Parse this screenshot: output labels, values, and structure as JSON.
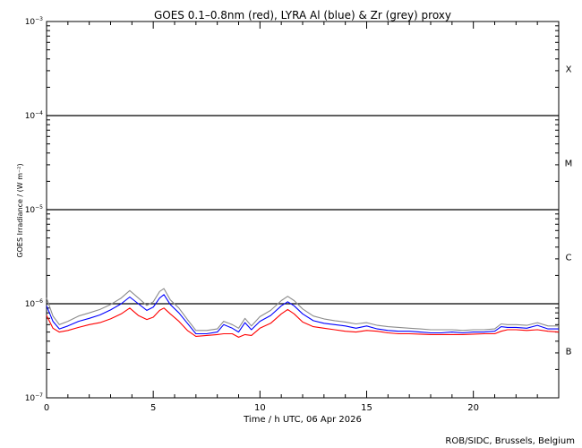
{
  "chart_data": {
    "type": "line",
    "title": "GOES 0.1–0.8nm (red), LYRA Al (blue) & Zr (grey) proxy",
    "xlabel": "Time / h UTC, 06 Apr 2026",
    "ylabel": "GOES Irradiance / (W m⁻²)",
    "footer": "ROB/SIDC, Brussels, Belgium",
    "y_scale": "log",
    "xlim": [
      0,
      24
    ],
    "ylim": [
      1e-07,
      0.001
    ],
    "x_ticks": [
      0,
      5,
      10,
      15,
      20
    ],
    "x_tick_labels": [
      "0",
      "5",
      "10",
      "15",
      "20"
    ],
    "y_ticks": [
      1e-07,
      1e-06,
      1e-05,
      0.0001,
      0.001
    ],
    "y_tick_labels": [
      {
        "base": "10",
        "exp": "−7"
      },
      {
        "base": "10",
        "exp": "−6"
      },
      {
        "base": "10",
        "exp": "−5"
      },
      {
        "base": "10",
        "exp": "−4"
      },
      {
        "base": "10",
        "exp": "−3"
      }
    ],
    "flare_class_lines": [
      1e-06,
      1e-05,
      0.0001
    ],
    "flare_class_labels": [
      {
        "label": "B",
        "y": 3.16e-07
      },
      {
        "label": "C",
        "y": 3.16e-06
      },
      {
        "label": "M",
        "y": 3.16e-05
      },
      {
        "label": "X",
        "y": 0.000316
      }
    ],
    "x": [
      0.0,
      0.3,
      0.6,
      1.0,
      1.5,
      2.0,
      2.5,
      3.0,
      3.5,
      3.9,
      4.3,
      4.7,
      5.0,
      5.3,
      5.5,
      5.8,
      6.2,
      6.6,
      7.0,
      7.5,
      8.0,
      8.3,
      8.7,
      9.0,
      9.3,
      9.6,
      10.0,
      10.5,
      11.0,
      11.3,
      11.6,
      12.0,
      12.5,
      13.0,
      13.5,
      14.0,
      14.5,
      15.0,
      15.5,
      16.0,
      16.5,
      17.0,
      17.5,
      18.0,
      18.5,
      19.0,
      19.5,
      20.0,
      20.5,
      21.0,
      21.3,
      21.6,
      22.0,
      22.5,
      23.0,
      23.5,
      24.0
    ],
    "series": [
      {
        "name": "GOES 0.1–0.8nm",
        "color": "#ff0000",
        "values": [
          7.5e-07,
          5.5e-07,
          5e-07,
          5.2e-07,
          5.6e-07,
          6e-07,
          6.3e-07,
          6.9e-07,
          7.8e-07,
          9e-07,
          7.5e-07,
          6.8e-07,
          7.2e-07,
          8.5e-07,
          9e-07,
          7.8e-07,
          6.5e-07,
          5.2e-07,
          4.5e-07,
          4.6e-07,
          4.7e-07,
          4.8e-07,
          4.8e-07,
          4.4e-07,
          4.7e-07,
          4.6e-07,
          5.5e-07,
          6.2e-07,
          7.8e-07,
          8.7e-07,
          7.8e-07,
          6.4e-07,
          5.7e-07,
          5.5e-07,
          5.3e-07,
          5.1e-07,
          5e-07,
          5.2e-07,
          5.1e-07,
          4.9e-07,
          4.8e-07,
          4.8e-07,
          4.75e-07,
          4.7e-07,
          4.7e-07,
          4.7e-07,
          4.7e-07,
          4.75e-07,
          4.8e-07,
          4.8e-07,
          5.1e-07,
          5.3e-07,
          5.3e-07,
          5.2e-07,
          5.3e-07,
          5.1e-07,
          5e-07
        ]
      },
      {
        "name": "LYRA Al",
        "color": "#0000ff",
        "values": [
          9.5e-07,
          6.5e-07,
          5.4e-07,
          5.8e-07,
          6.5e-07,
          7e-07,
          7.6e-07,
          8.6e-07,
          1e-06,
          1.18e-06,
          1e-06,
          8.5e-07,
          9.2e-07,
          1.15e-06,
          1.25e-06,
          9.8e-07,
          8e-07,
          6.2e-07,
          4.8e-07,
          4.8e-07,
          5e-07,
          6e-07,
          5.5e-07,
          5e-07,
          6.3e-07,
          5.3e-07,
          6.5e-07,
          7.5e-07,
          9.5e-07,
          1.05e-06,
          9.5e-07,
          7.8e-07,
          6.6e-07,
          6.2e-07,
          6e-07,
          5.8e-07,
          5.5e-07,
          5.8e-07,
          5.4e-07,
          5.2e-07,
          5.1e-07,
          5.1e-07,
          5e-07,
          4.9e-07,
          4.9e-07,
          5e-07,
          4.9e-07,
          5e-07,
          5e-07,
          5.1e-07,
          5.7e-07,
          5.6e-07,
          5.6e-07,
          5.5e-07,
          5.9e-07,
          5.4e-07,
          5.4e-07
        ]
      },
      {
        "name": "LYRA Zr",
        "color": "#8c8c8c",
        "values": [
          1.15e-06,
          7.4e-07,
          6e-07,
          6.5e-07,
          7.4e-07,
          8e-07,
          8.7e-07,
          9.8e-07,
          1.15e-06,
          1.38e-06,
          1.15e-06,
          9.6e-07,
          1.05e-06,
          1.35e-06,
          1.45e-06,
          1.1e-06,
          9e-07,
          6.8e-07,
          5.2e-07,
          5.2e-07,
          5.4e-07,
          6.5e-07,
          6e-07,
          5.5e-07,
          7e-07,
          5.8e-07,
          7.3e-07,
          8.5e-07,
          1.08e-06,
          1.2e-06,
          1.08e-06,
          8.8e-07,
          7.4e-07,
          6.9e-07,
          6.6e-07,
          6.4e-07,
          6.1e-07,
          6.3e-07,
          5.9e-07,
          5.7e-07,
          5.6e-07,
          5.5e-07,
          5.4e-07,
          5.3e-07,
          5.3e-07,
          5.3e-07,
          5.2e-07,
          5.3e-07,
          5.3e-07,
          5.4e-07,
          6.1e-07,
          6e-07,
          6e-07,
          5.9e-07,
          6.3e-07,
          5.8e-07,
          5.8e-07
        ]
      }
    ]
  }
}
